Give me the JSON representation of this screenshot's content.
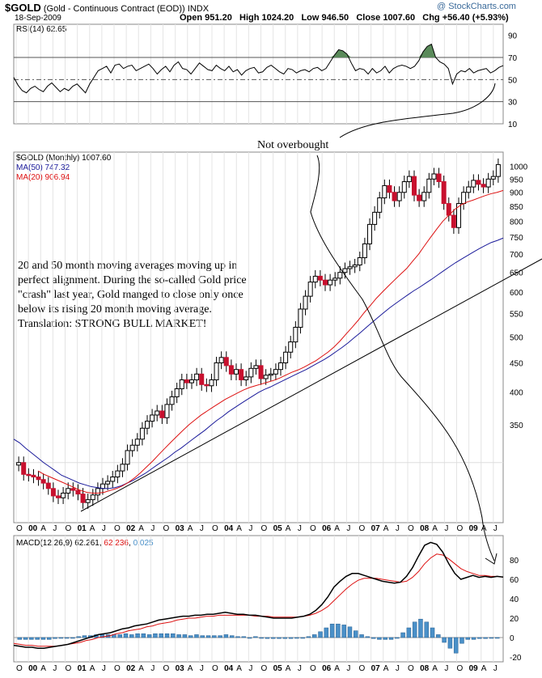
{
  "header": {
    "ticker": "$GOLD",
    "name": "(Gold - Continuous Contract (EOD))",
    "exchange": "INDX",
    "date": "18-Sep-2009",
    "open": "Open 951.20",
    "high": "High 1024.20",
    "low": "Low 946.50",
    "close": "Close 1007.60",
    "chg": "Chg +56.40 (+5.93%)",
    "watermark": "@ StockCharts.com"
  },
  "chart_data": [
    {
      "type": "line",
      "title": "RSI(14) 62.65",
      "ylim": [
        10,
        100
      ],
      "yticks": [
        10,
        30,
        50,
        70,
        90
      ],
      "reference_lines": [
        30,
        50,
        70
      ],
      "series": [
        {
          "name": "RSI(14)",
          "values": [
            52,
            45,
            40,
            38,
            42,
            44,
            41,
            39,
            44,
            47,
            43,
            39,
            42,
            40,
            44,
            46,
            42,
            38,
            46,
            52,
            58,
            60,
            62,
            56,
            63,
            64,
            60,
            62,
            63,
            58,
            60,
            62,
            64,
            60,
            55,
            59,
            62,
            57,
            63,
            66,
            60,
            59,
            55,
            60,
            65,
            62,
            59,
            58,
            63,
            60,
            58,
            62,
            57,
            59,
            54,
            58,
            60,
            61,
            56,
            57,
            61,
            63,
            60,
            57,
            55,
            60,
            59,
            56,
            58,
            59,
            57,
            60,
            61,
            58,
            60,
            66,
            72,
            77,
            76,
            73,
            65,
            58,
            60,
            59,
            55,
            60,
            56,
            58,
            62,
            56,
            60,
            62,
            63,
            62,
            60,
            62,
            67,
            75,
            80,
            82,
            70,
            66,
            64,
            60,
            46,
            55,
            58,
            57,
            60,
            56,
            58,
            59,
            60,
            56,
            58,
            61,
            62.65
          ]
        }
      ],
      "fill_above": 70
    },
    {
      "type": "line",
      "title": "$GOLD (Monthly) 1007.60",
      "y_scale": "log",
      "ylim": [
        235,
        1060
      ],
      "yticks": [
        350,
        400,
        450,
        500,
        550,
        600,
        650,
        700,
        750,
        800,
        850,
        900,
        950,
        1000
      ],
      "x_labels": [
        "O",
        "00",
        "A",
        "J",
        "O",
        "01",
        "A",
        "J",
        "O",
        "02",
        "A",
        "J",
        "O",
        "03",
        "A",
        "J",
        "O",
        "04",
        "A",
        "J",
        "O",
        "05",
        "A",
        "J",
        "O",
        "06",
        "A",
        "J",
        "O",
        "07",
        "A",
        "J",
        "O",
        "08",
        "A",
        "J",
        "O",
        "09",
        "A",
        "J"
      ],
      "series": [
        {
          "name": "$GOLD",
          "values": [
            300,
            286,
            285,
            283,
            280,
            276,
            270,
            262,
            260,
            265,
            270,
            268,
            264,
            255,
            258,
            263,
            270,
            275,
            278,
            283,
            290,
            298,
            315,
            322,
            330,
            345,
            355,
            364,
            370,
            360,
            380,
            392,
            405,
            420,
            415,
            420,
            430,
            412,
            410,
            420,
            450,
            460,
            445,
            430,
            438,
            420,
            425,
            440,
            445,
            422,
            428,
            430,
            438,
            450,
            470,
            490,
            520,
            560,
            590,
            625,
            640,
            630,
            618,
            630,
            635,
            650,
            660,
            665,
            670,
            690,
            730,
            790,
            830,
            880,
            925,
            900,
            870,
            900,
            940,
            960,
            890,
            870,
            900,
            950,
            970,
            940,
            860,
            820,
            780,
            860,
            900,
            920,
            945,
            930,
            920,
            950,
            960,
            1007.6
          ]
        },
        {
          "name": "MA(50) 747.32",
          "values": [
            330,
            325,
            318,
            312,
            306,
            300,
            295,
            290,
            285,
            282,
            279,
            276,
            274,
            272,
            271,
            270,
            270,
            271,
            273,
            276,
            279,
            283,
            287,
            292,
            297,
            302,
            307,
            313,
            318,
            324,
            330,
            336,
            342,
            349,
            356,
            362,
            369,
            375,
            381,
            387,
            393,
            399,
            404,
            408,
            413,
            418,
            423,
            428,
            433,
            438,
            444,
            450,
            456,
            463,
            471,
            479,
            488,
            498,
            508,
            519,
            530,
            541,
            552,
            563,
            573,
            583,
            593,
            603,
            612,
            622,
            632,
            643,
            654,
            665,
            676,
            686,
            696,
            706,
            716,
            725,
            734,
            740,
            747.32
          ]
        },
        {
          "name": "MA(20) 906.94",
          "values": [
            290,
            286,
            283,
            280,
            277,
            274,
            271,
            268,
            266,
            265,
            265,
            266,
            268,
            270,
            273,
            277,
            282,
            288,
            295,
            302,
            310,
            318,
            326,
            334,
            342,
            350,
            357,
            364,
            370,
            376,
            382,
            388,
            393,
            398,
            403,
            407,
            410,
            413,
            416,
            419,
            423,
            428,
            433,
            437,
            442,
            448,
            454,
            462,
            470,
            480,
            492,
            506,
            520,
            535,
            552,
            568,
            585,
            600,
            615,
            630,
            645,
            660,
            680,
            700,
            725,
            750,
            775,
            800,
            820,
            840,
            855,
            865,
            872,
            880,
            888,
            895,
            900,
            906.94
          ]
        }
      ]
    },
    {
      "type": "line",
      "title": "MACD(12,26,9) 62.261, 62.236, 0.025",
      "ylim": [
        -25,
        105
      ],
      "yticks": [
        -20,
        0,
        20,
        40,
        60,
        80
      ],
      "series": [
        {
          "name": "MACD(12,26,9) 62.261",
          "values": [
            -8,
            -9,
            -10,
            -10,
            -11,
            -11,
            -10,
            -9,
            -8,
            -7,
            -5,
            -3,
            -1,
            1,
            3,
            4,
            5,
            7,
            9,
            10,
            12,
            13,
            14,
            16,
            18,
            19,
            20,
            21,
            22,
            22,
            23,
            23,
            24,
            24,
            25,
            26,
            25,
            24,
            24,
            23,
            23,
            22,
            21,
            20,
            20,
            20,
            20,
            21,
            22,
            24,
            28,
            34,
            42,
            52,
            58,
            63,
            66,
            66,
            64,
            62,
            60,
            58,
            57,
            56,
            57,
            63,
            72,
            84,
            95,
            98,
            96,
            88,
            76,
            66,
            60,
            62,
            64,
            62,
            63,
            62,
            63,
            62.261
          ]
        },
        {
          "name": "62.236",
          "values": [
            -6,
            -7,
            -8,
            -8,
            -9,
            -9,
            -9,
            -9,
            -8,
            -7,
            -6,
            -5,
            -3,
            -2,
            0,
            1,
            2,
            4,
            5,
            7,
            8,
            9,
            11,
            12,
            14,
            15,
            16,
            18,
            19,
            20,
            20,
            21,
            22,
            22,
            23,
            23,
            23,
            23,
            23,
            23,
            22,
            22,
            22,
            21,
            21,
            21,
            21,
            21,
            22,
            23,
            25,
            28,
            32,
            38,
            44,
            50,
            55,
            59,
            61,
            61,
            61,
            60,
            59,
            58,
            57,
            58,
            62,
            68,
            76,
            82,
            86,
            85,
            81,
            76,
            71,
            68,
            66,
            64,
            64,
            63,
            63,
            62.236
          ]
        },
        {
          "name": "0.025",
          "values": [
            -2,
            -2,
            -2,
            -2,
            -2,
            -2,
            -1,
            0,
            0,
            0,
            1,
            2,
            2,
            3,
            3,
            3,
            3,
            3,
            4,
            3,
            4,
            4,
            3,
            4,
            4,
            4,
            4,
            3,
            3,
            2,
            3,
            2,
            2,
            2,
            2,
            3,
            2,
            1,
            1,
            0,
            1,
            0,
            -1,
            -1,
            -1,
            -1,
            -1,
            0,
            0,
            1,
            3,
            6,
            10,
            14,
            14,
            13,
            11,
            7,
            3,
            1,
            -1,
            -2,
            -2,
            -2,
            0,
            5,
            10,
            16,
            19,
            16,
            10,
            3,
            -5,
            -11,
            -16,
            -6,
            -2,
            -2,
            -1,
            -1,
            0,
            0.025
          ]
        }
      ]
    }
  ],
  "annotations": {
    "not_overbought": "Not overbought",
    "commentary": "20 and 50 month moving averages moving up in perfect alignment. During the so-called Gold price \"crash\" last year, Gold manged to close only once below its rising 20 month moving average. Translation: STRONG BULL MARKET!"
  },
  "colors": {
    "price_up": "#000000",
    "price_down": "#c8102e",
    "ma50": "#1a1a9a",
    "ma20": "#dd1111",
    "rsi_fill": "#5a8a5a",
    "macd_hist": "#4a90c8",
    "grid": "#000000"
  }
}
